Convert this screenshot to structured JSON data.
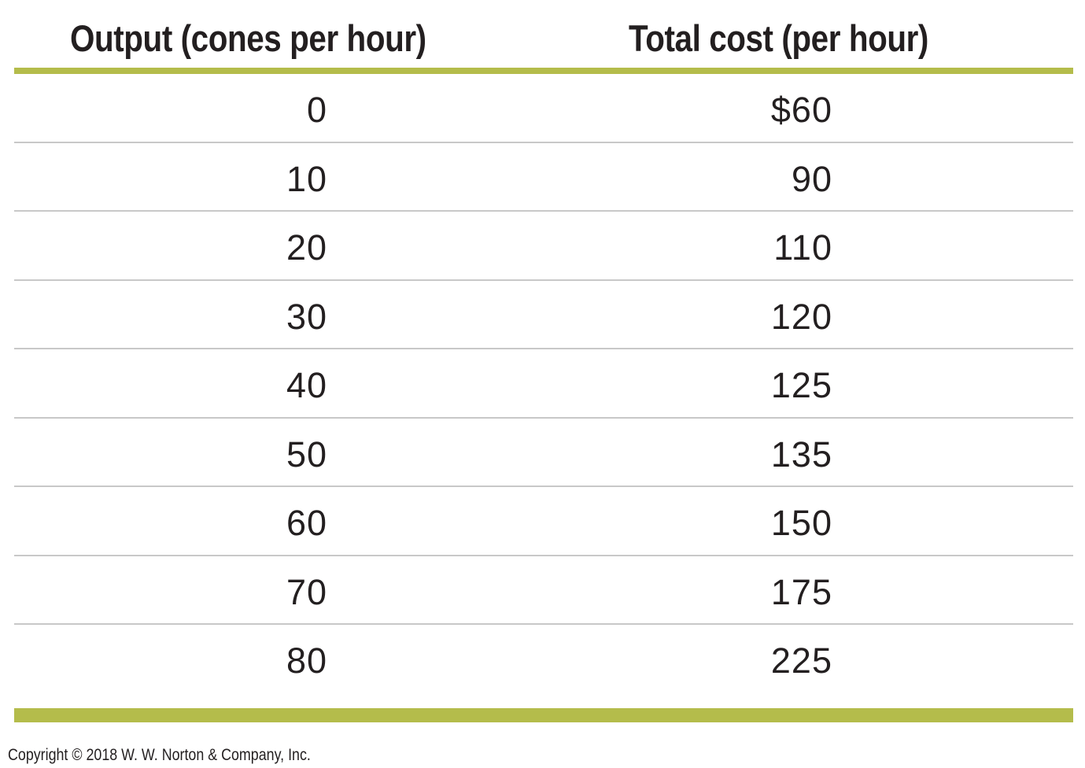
{
  "table": {
    "headers": {
      "output": "Output (cones per hour)",
      "total_cost": "Total cost (per hour)"
    },
    "rows": [
      {
        "output": "0",
        "total_cost": "$60"
      },
      {
        "output": "10",
        "total_cost": "90"
      },
      {
        "output": "20",
        "total_cost": "110"
      },
      {
        "output": "30",
        "total_cost": "120"
      },
      {
        "output": "40",
        "total_cost": "125"
      },
      {
        "output": "50",
        "total_cost": "135"
      },
      {
        "output": "60",
        "total_cost": "150"
      },
      {
        "output": "70",
        "total_cost": "175"
      },
      {
        "output": "80",
        "total_cost": "225"
      }
    ]
  },
  "footer": {
    "copyright": "Copyright © 2018 W. W. Norton & Company, Inc."
  },
  "colors": {
    "accent_rule": "#b4bc4b",
    "row_divider": "#c8c8c8",
    "text": "#231f20"
  }
}
